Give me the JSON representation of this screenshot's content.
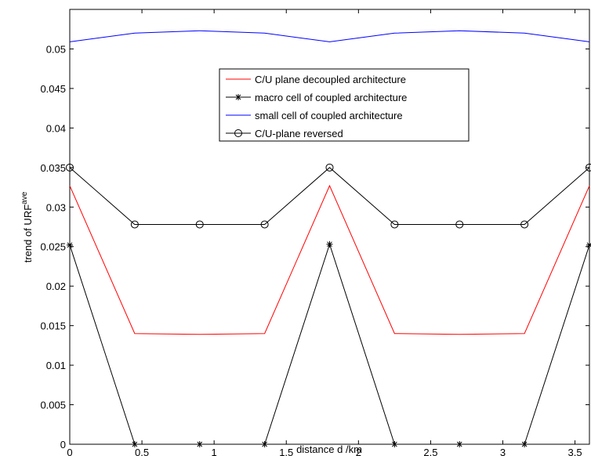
{
  "chart_data": {
    "type": "line",
    "x_label": "distance d  /km",
    "y_label": {
      "text": "trend of URF",
      "superscript": "ave"
    },
    "x": [
      0,
      0.45,
      0.9,
      1.35,
      1.8,
      2.25,
      2.7,
      3.15,
      3.6
    ],
    "series": [
      {
        "name": "C/U plane decoupled architecture",
        "color": "#ff0000",
        "marker": "none",
        "values": [
          0.0327,
          0.014,
          0.0139,
          0.014,
          0.0327,
          0.014,
          0.0139,
          0.014,
          0.0327
        ]
      },
      {
        "name": "macro cell of coupled architecture",
        "color": "#000000",
        "marker": "star",
        "values": [
          0.0252,
          0,
          0,
          0,
          0.0253,
          0,
          0,
          0,
          0.0252
        ]
      },
      {
        "name": "small cell of coupled architecture",
        "color": "#0000ff",
        "marker": "none",
        "values": [
          0.0509,
          0.052,
          0.0523,
          0.052,
          0.0509,
          0.052,
          0.0523,
          0.052,
          0.0509
        ]
      },
      {
        "name": "C/U-plane reversed",
        "color": "#000000",
        "marker": "circle",
        "values": [
          0.035,
          0.0278,
          0.0278,
          0.0278,
          0.035,
          0.0278,
          0.0278,
          0.0278,
          0.035
        ]
      }
    ],
    "xlim": [
      0,
      3.6
    ],
    "xticks": [
      0,
      0.5,
      1,
      1.5,
      2,
      2.5,
      3,
      3.5
    ],
    "ylim": [
      0,
      0.055
    ],
    "yticks": [
      0,
      0.005,
      0.01,
      0.015,
      0.02,
      0.025,
      0.03,
      0.035,
      0.04,
      0.045,
      0.05
    ],
    "grid": false
  }
}
